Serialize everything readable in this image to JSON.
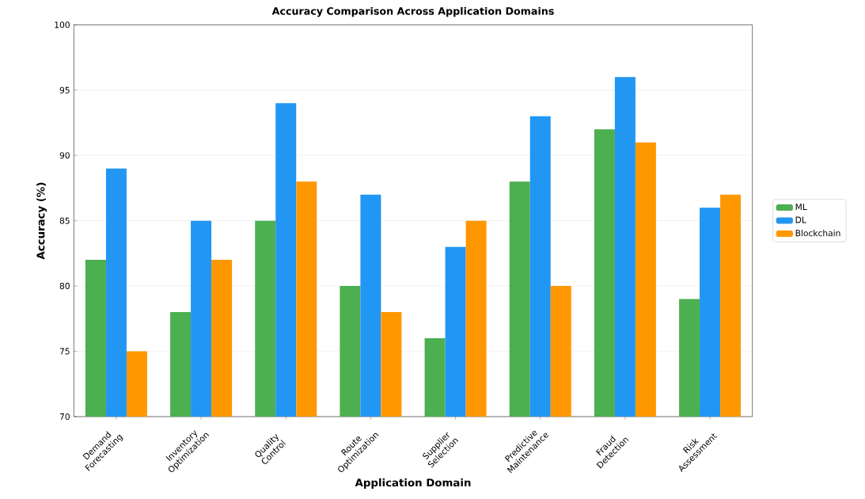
{
  "chart_data": {
    "type": "bar",
    "title": "Accuracy Comparison Across Application Domains",
    "xlabel": "Application Domain",
    "ylabel": "Accuracy (%)",
    "categories": [
      "Demand Forecasting",
      "Inventory Optimization",
      "Quality Control",
      "Route Optimization",
      "Supplier Selection",
      "Predictive Maintenance",
      "Fraud Detection",
      "Risk Assessment"
    ],
    "series": [
      {
        "name": "ML",
        "color": "#4caf50",
        "values": [
          82,
          78,
          85,
          80,
          76,
          88,
          92,
          79
        ]
      },
      {
        "name": "DL",
        "color": "#2196f3",
        "values": [
          89,
          85,
          94,
          87,
          83,
          93,
          96,
          86
        ]
      },
      {
        "name": "Blockchain",
        "color": "#ff9800",
        "values": [
          75,
          82,
          88,
          78,
          85,
          80,
          91,
          87
        ]
      }
    ],
    "ylim": [
      70,
      100
    ],
    "yticks": [
      70,
      75,
      80,
      85,
      90,
      95,
      100
    ],
    "grid": "y",
    "legend": "right"
  }
}
